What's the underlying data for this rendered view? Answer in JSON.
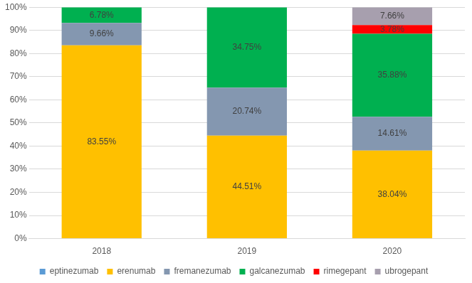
{
  "chart_data": {
    "type": "bar",
    "stacked": true,
    "grid": true,
    "legend": "bottom",
    "data_labels": true,
    "categories": [
      "2018",
      "2019",
      "2020"
    ],
    "ylim": [
      0,
      100
    ],
    "yticks": [
      {
        "value": 0,
        "label": "0%"
      },
      {
        "value": 10,
        "label": "10%"
      },
      {
        "value": 20,
        "label": "20%"
      },
      {
        "value": 30,
        "label": "30%"
      },
      {
        "value": 40,
        "label": "40%"
      },
      {
        "value": 50,
        "label": "50%"
      },
      {
        "value": 60,
        "label": "60%"
      },
      {
        "value": 70,
        "label": "70%"
      },
      {
        "value": 80,
        "label": "80%"
      },
      {
        "value": 90,
        "label": "90%"
      },
      {
        "value": 100,
        "label": "100%"
      }
    ],
    "series": [
      {
        "name": "eptinezumab",
        "color": "#5b9bd5",
        "values": [
          null,
          null,
          null
        ],
        "value_labels": [
          null,
          null,
          null
        ]
      },
      {
        "name": "erenumab",
        "color": "#ffc000",
        "values": [
          83.55,
          44.51,
          38.04
        ],
        "value_labels": [
          "83.55%",
          "44.51%",
          "38.04%"
        ]
      },
      {
        "name": "fremanezumab",
        "color": "#8497b0",
        "values": [
          9.66,
          20.74,
          14.61
        ],
        "value_labels": [
          "9.66%",
          "20.74%",
          "14.61%"
        ]
      },
      {
        "name": "galcanezumab",
        "color": "#00b050",
        "values": [
          6.78,
          34.75,
          35.88
        ],
        "value_labels": [
          "6.78%",
          "34.75%",
          "35.88%"
        ]
      },
      {
        "name": "rimegepant",
        "color": "#ff0000",
        "values": [
          null,
          null,
          3.78
        ],
        "value_labels": [
          null,
          null,
          "3.78%"
        ]
      },
      {
        "name": "ubrogepant",
        "color": "#a79fae",
        "values": [
          null,
          null,
          7.66
        ],
        "value_labels": [
          null,
          null,
          "7.66%"
        ]
      }
    ]
  }
}
